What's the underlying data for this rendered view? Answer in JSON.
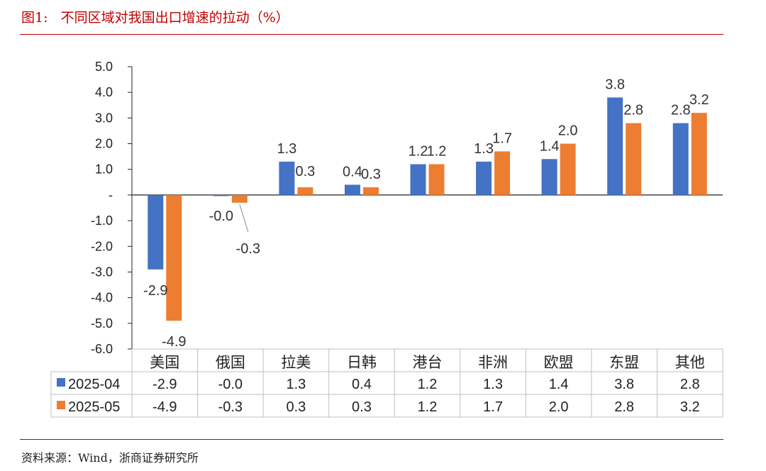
{
  "figure": {
    "title": "图1:   不同区域对我国出口增速的拉动（%）",
    "source": "资料来源：Wind，浙商证券研究所"
  },
  "colors": {
    "accent": "#c00000",
    "series_1": "#4472c4",
    "series_2": "#ed7d31"
  },
  "chart_data": {
    "type": "bar",
    "categories": [
      "美国",
      "俄国",
      "拉美",
      "日韩",
      "港台",
      "非洲",
      "欧盟",
      "东盟",
      "其他"
    ],
    "series": [
      {
        "name": "2025-04",
        "values": [
          -2.9,
          -0.0,
          1.3,
          0.4,
          1.2,
          1.3,
          1.4,
          3.8,
          2.8
        ],
        "labels": [
          "-2.9",
          "-0.0",
          "1.3",
          "0.4",
          "1.2",
          "1.3",
          "1.4",
          "3.8",
          "2.8"
        ]
      },
      {
        "name": "2025-05",
        "values": [
          -4.9,
          -0.3,
          0.3,
          0.3,
          1.2,
          1.7,
          2.0,
          2.8,
          3.2
        ],
        "labels": [
          "-4.9",
          "-0.3",
          "0.3",
          "0.3",
          "1.2",
          "1.7",
          "2.0",
          "2.8",
          "3.2"
        ]
      }
    ],
    "y_ticks": [
      "5.0",
      "4.0",
      "3.0",
      "2.0",
      "1.0",
      "-",
      "-1.0",
      "-2.0",
      "-3.0",
      "-4.0",
      "-5.0",
      "-6.0"
    ],
    "ylim": [
      -6,
      5
    ],
    "grid": false,
    "legend": "data-table-below",
    "data_table": true
  }
}
